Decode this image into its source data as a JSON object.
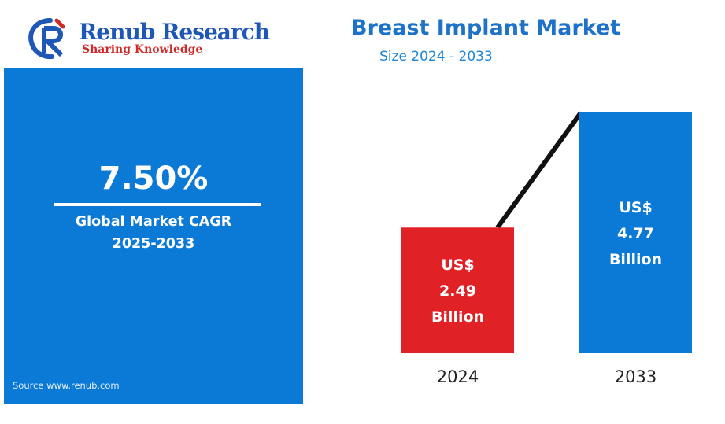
{
  "brand": {
    "name": "Renub Research",
    "tagline": "Sharing Knowledge",
    "colors": {
      "blue": "#1e57b6",
      "red": "#d12a2a"
    }
  },
  "header": {
    "title": "Breast Implant Market",
    "subtitle": "Size 2024 - 2033"
  },
  "cagr_panel": {
    "value": "7.50%",
    "label_line1": "Global Market CAGR",
    "label_line2": "2025-2033",
    "source": "Source  www.renub.com",
    "background": "#0b7ad6"
  },
  "chart_data": {
    "type": "bar",
    "categories": [
      "2024",
      "2033"
    ],
    "values": [
      2.49,
      4.77
    ],
    "unit": "US$ Billion",
    "bar_labels": [
      [
        "US$",
        "2.49",
        "Billion"
      ],
      [
        "US$",
        "4.77",
        "Billion"
      ]
    ],
    "bar_colors": [
      "#e02126",
      "#0b7ad6"
    ],
    "ylim": [
      0,
      4.77
    ],
    "grid": false,
    "connector_line": true
  }
}
